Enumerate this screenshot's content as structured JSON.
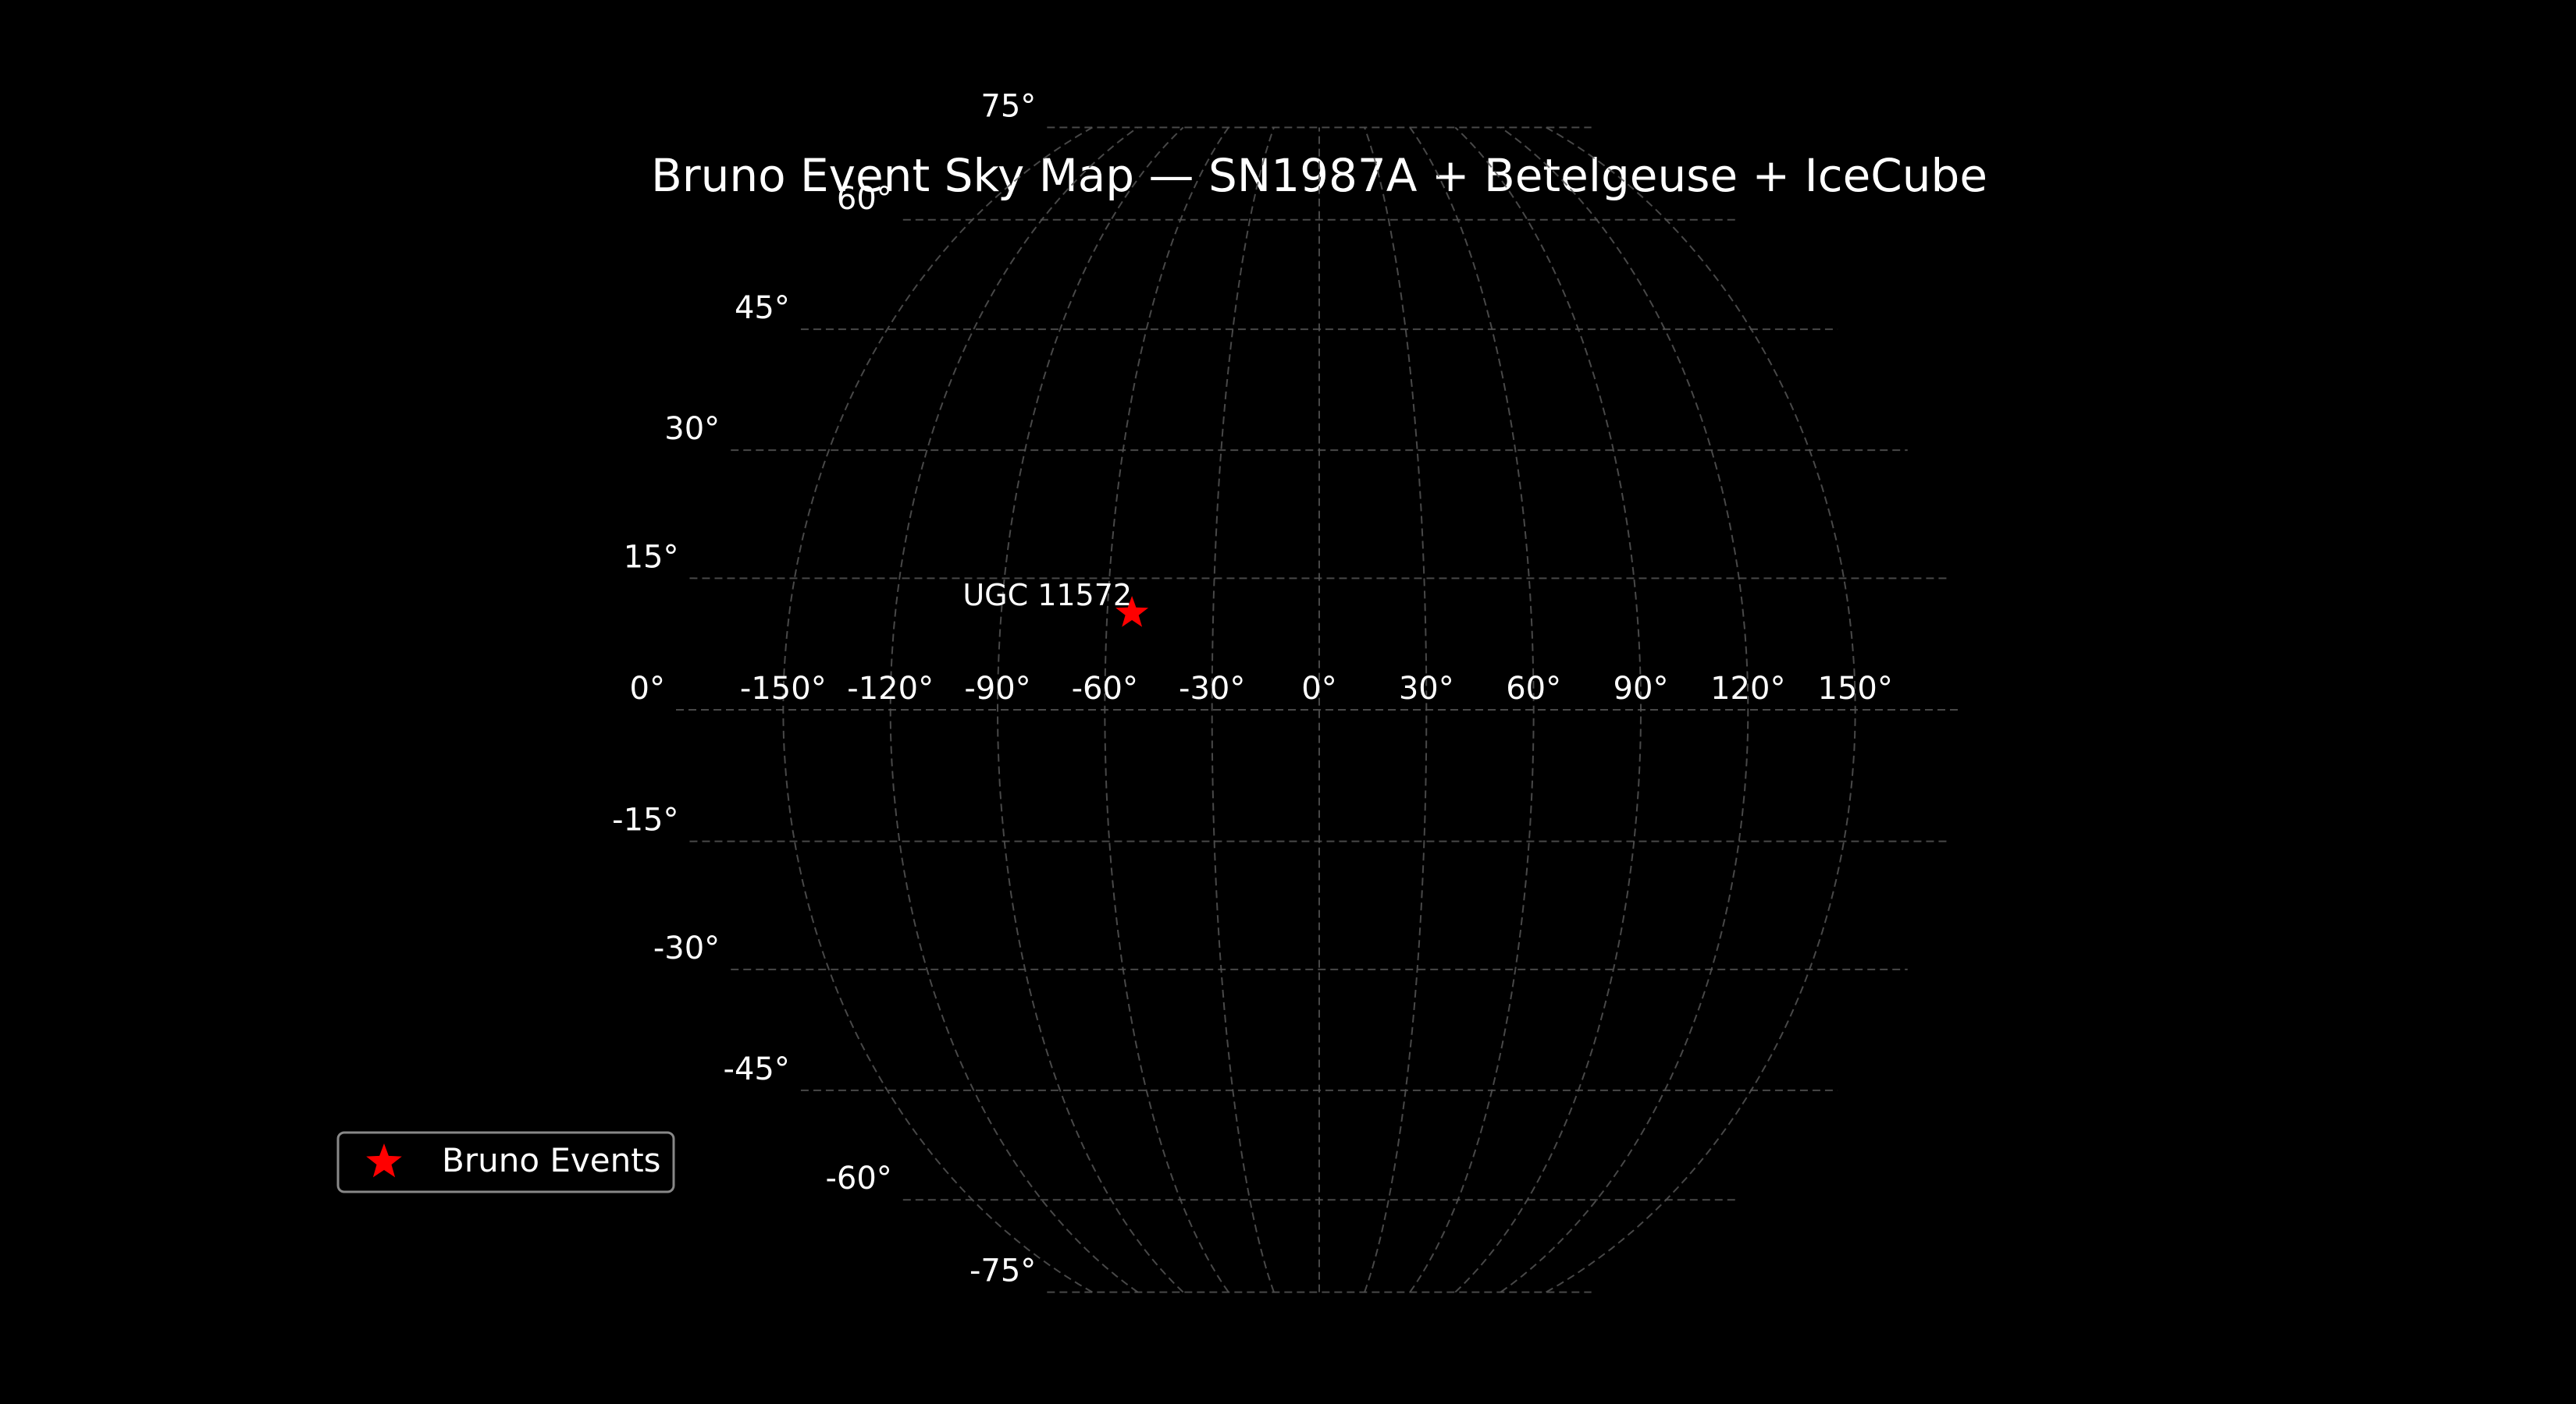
{
  "chart_data": {
    "type": "scatter",
    "projection": "mollweide",
    "title": "Bruno Event Sky Map — SN1987A + Betelgeuse + IceCube",
    "grid": true,
    "grid_style": "dashed",
    "xlim": [
      -180,
      180
    ],
    "ylim": [
      -90,
      90
    ],
    "x_tick_values": [
      -150,
      -120,
      -90,
      -60,
      -30,
      0,
      30,
      60,
      90,
      120,
      150
    ],
    "x_tick_labels": [
      "-150°",
      "-120°",
      "-90°",
      "-60°",
      "-30°",
      "0°",
      "30°",
      "60°",
      "90°",
      "120°",
      "150°"
    ],
    "y_tick_values": [
      75,
      60,
      45,
      30,
      15,
      0,
      -15,
      -30,
      -45,
      -60,
      -75
    ],
    "y_tick_labels": [
      "75°",
      "60°",
      "45°",
      "30°",
      "15°",
      "0°",
      "-15°",
      "-30°",
      "-45°",
      "-60°",
      "-75°"
    ],
    "series": [
      {
        "name": "Bruno Events",
        "marker": "star",
        "color": "#ff0000",
        "points": [
          {
            "x": -53,
            "y": 11,
            "label": "UGC 11572"
          }
        ]
      }
    ],
    "legend": {
      "placement": "lower-left",
      "entries": [
        "Bruno Events"
      ]
    }
  }
}
